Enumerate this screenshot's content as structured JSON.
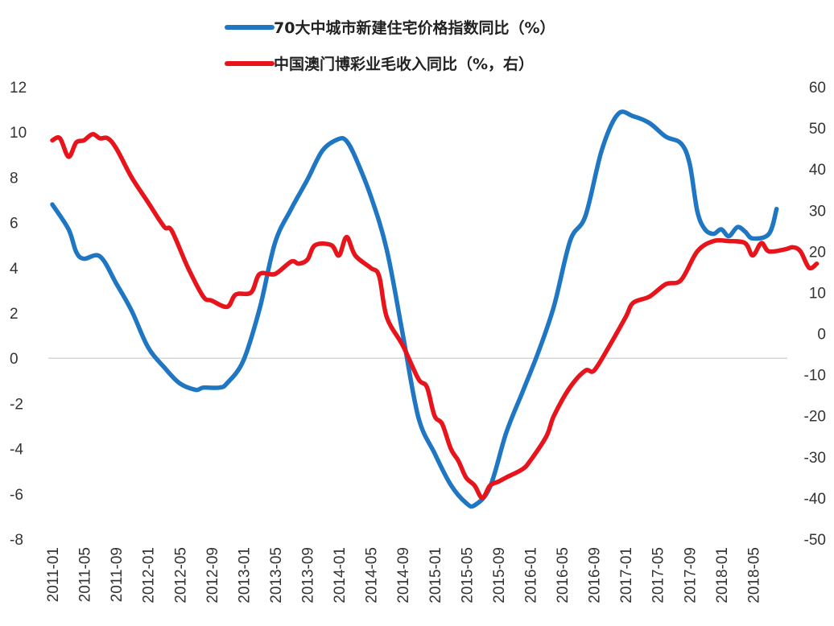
{
  "chart_data": {
    "type": "line",
    "legend_position": "top",
    "grid": false,
    "x_ticks": [
      "2011-01",
      "2011-05",
      "2011-09",
      "2012-01",
      "2012-05",
      "2012-09",
      "2013-01",
      "2013-05",
      "2013-09",
      "2014-01",
      "2014-05",
      "2014-09",
      "2015-01",
      "2015-05",
      "2015-09",
      "2016-01",
      "2016-05",
      "2016-09",
      "2017-01",
      "2017-05",
      "2017-09",
      "2018-01",
      "2018-05"
    ],
    "y_left": {
      "ticks": [
        12,
        10,
        8,
        6,
        4,
        2,
        0,
        -2,
        -4,
        -6,
        -8
      ],
      "range": [
        -8,
        12
      ]
    },
    "y_right": {
      "ticks": [
        60,
        50,
        40,
        30,
        20,
        10,
        0,
        -10,
        -20,
        -30,
        -40,
        -50
      ],
      "range": [
        -50,
        60
      ]
    },
    "series": [
      {
        "name": "70大中城市新建住宅价格指数同比（%）",
        "axis": "left",
        "color": "#1F77C4",
        "points": [
          [
            2011.0,
            6.8
          ],
          [
            2011.17,
            5.7
          ],
          [
            2011.25,
            4.7
          ],
          [
            2011.33,
            4.4
          ],
          [
            2011.5,
            4.5
          ],
          [
            2011.67,
            3.3
          ],
          [
            2011.83,
            2.1
          ],
          [
            2012.0,
            0.5
          ],
          [
            2012.17,
            -0.4
          ],
          [
            2012.33,
            -1.1
          ],
          [
            2012.5,
            -1.4
          ],
          [
            2012.58,
            -1.3
          ],
          [
            2012.75,
            -1.3
          ],
          [
            2012.83,
            -1.1
          ],
          [
            2013.0,
            -0.1
          ],
          [
            2013.17,
            2.2
          ],
          [
            2013.33,
            5.1
          ],
          [
            2013.5,
            6.6
          ],
          [
            2013.67,
            7.9
          ],
          [
            2013.83,
            9.2
          ],
          [
            2014.0,
            9.7
          ],
          [
            2014.08,
            9.6
          ],
          [
            2014.17,
            8.9
          ],
          [
            2014.33,
            7.2
          ],
          [
            2014.5,
            4.8
          ],
          [
            2014.67,
            1.0
          ],
          [
            2014.83,
            -2.6
          ],
          [
            2015.0,
            -4.2
          ],
          [
            2015.17,
            -5.6
          ],
          [
            2015.33,
            -6.4
          ],
          [
            2015.42,
            -6.5
          ],
          [
            2015.58,
            -5.7
          ],
          [
            2015.75,
            -3.3
          ],
          [
            2015.92,
            -1.5
          ],
          [
            2016.08,
            0.2
          ],
          [
            2016.25,
            2.3
          ],
          [
            2016.42,
            5.2
          ],
          [
            2016.58,
            6.3
          ],
          [
            2016.75,
            9.2
          ],
          [
            2016.92,
            10.8
          ],
          [
            2017.08,
            10.7
          ],
          [
            2017.25,
            10.4
          ],
          [
            2017.42,
            9.8
          ],
          [
            2017.58,
            9.5
          ],
          [
            2017.67,
            8.6
          ],
          [
            2017.75,
            6.5
          ],
          [
            2017.83,
            5.7
          ],
          [
            2017.92,
            5.5
          ],
          [
            2018.0,
            5.7
          ],
          [
            2018.08,
            5.4
          ],
          [
            2018.17,
            5.8
          ],
          [
            2018.25,
            5.6
          ],
          [
            2018.33,
            5.3
          ],
          [
            2018.5,
            5.5
          ],
          [
            2018.58,
            6.6
          ]
        ]
      },
      {
        "name": "中国澳门博彩业毛收入同比（%，右）",
        "axis": "right",
        "color": "#E8141C",
        "points": [
          [
            2011.0,
            47
          ],
          [
            2011.08,
            47.5
          ],
          [
            2011.17,
            43
          ],
          [
            2011.25,
            46.5
          ],
          [
            2011.33,
            47
          ],
          [
            2011.42,
            48.5
          ],
          [
            2011.5,
            47.5
          ],
          [
            2011.58,
            47.5
          ],
          [
            2011.67,
            45
          ],
          [
            2011.83,
            38
          ],
          [
            2012.0,
            32
          ],
          [
            2012.17,
            26
          ],
          [
            2012.25,
            25
          ],
          [
            2012.42,
            16
          ],
          [
            2012.58,
            9
          ],
          [
            2012.67,
            8
          ],
          [
            2012.83,
            6.5
          ],
          [
            2012.92,
            9.5
          ],
          [
            2013.08,
            10
          ],
          [
            2013.17,
            14.5
          ],
          [
            2013.33,
            14.5
          ],
          [
            2013.5,
            17.5
          ],
          [
            2013.58,
            17
          ],
          [
            2013.67,
            18
          ],
          [
            2013.75,
            21.5
          ],
          [
            2013.92,
            21.5
          ],
          [
            2014.0,
            19
          ],
          [
            2014.08,
            23.5
          ],
          [
            2014.17,
            19
          ],
          [
            2014.33,
            16
          ],
          [
            2014.42,
            14
          ],
          [
            2014.5,
            4
          ],
          [
            2014.67,
            -3
          ],
          [
            2014.83,
            -11
          ],
          [
            2014.92,
            -13
          ],
          [
            2015.0,
            -20
          ],
          [
            2015.08,
            -22
          ],
          [
            2015.17,
            -28
          ],
          [
            2015.25,
            -31
          ],
          [
            2015.33,
            -35
          ],
          [
            2015.42,
            -37
          ],
          [
            2015.5,
            -40
          ],
          [
            2015.58,
            -37
          ],
          [
            2015.67,
            -36
          ],
          [
            2015.75,
            -35
          ],
          [
            2015.92,
            -33
          ],
          [
            2016.0,
            -31
          ],
          [
            2016.17,
            -25
          ],
          [
            2016.25,
            -20
          ],
          [
            2016.42,
            -13
          ],
          [
            2016.58,
            -9
          ],
          [
            2016.67,
            -9
          ],
          [
            2016.83,
            -3
          ],
          [
            2017.0,
            4
          ],
          [
            2017.08,
            7.5
          ],
          [
            2017.25,
            9
          ],
          [
            2017.42,
            12
          ],
          [
            2017.58,
            13
          ],
          [
            2017.75,
            20
          ],
          [
            2017.92,
            22.5
          ],
          [
            2018.08,
            22.5
          ],
          [
            2018.25,
            22
          ],
          [
            2018.33,
            19
          ],
          [
            2018.42,
            22
          ],
          [
            2018.5,
            20
          ],
          [
            2018.67,
            20.5
          ],
          [
            2018.75,
            21
          ],
          [
            2018.83,
            20
          ],
          [
            2018.92,
            16
          ],
          [
            2019.0,
            17
          ]
        ]
      }
    ]
  }
}
